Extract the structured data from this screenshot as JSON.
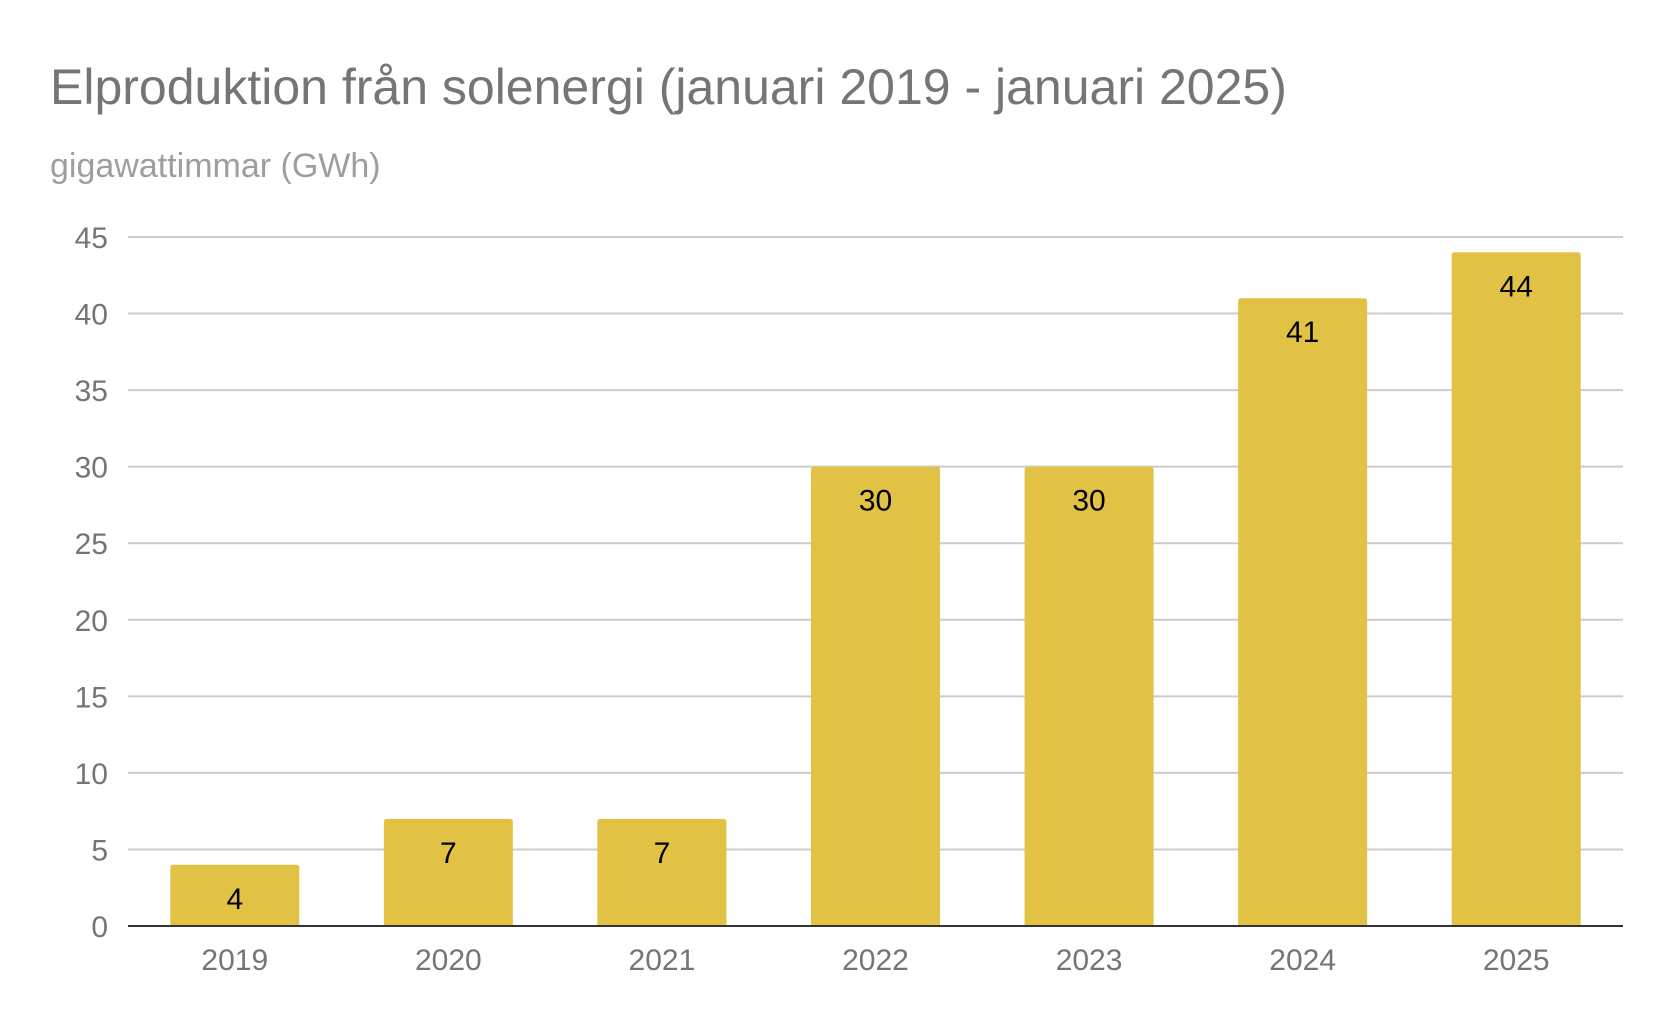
{
  "chart_data": {
    "type": "bar",
    "title": "Elproduktion från solenergi (januari 2019 - januari 2025)",
    "subtitle": "gigawattimmar (GWh)",
    "xlabel": "",
    "ylabel": "",
    "categories": [
      "2019",
      "2020",
      "2021",
      "2022",
      "2023",
      "2024",
      "2025"
    ],
    "series": [
      {
        "values": [
          4,
          7,
          7,
          30,
          30,
          41,
          44
        ],
        "color": "#e2c244"
      }
    ],
    "data_labels": [
      "4",
      "7",
      "7",
      "30",
      "30",
      "41",
      "44"
    ],
    "ylim": [
      0,
      45
    ],
    "yticks": [
      0,
      5,
      10,
      15,
      20,
      25,
      30,
      35,
      40,
      45
    ],
    "grid": true,
    "legend": "none"
  }
}
